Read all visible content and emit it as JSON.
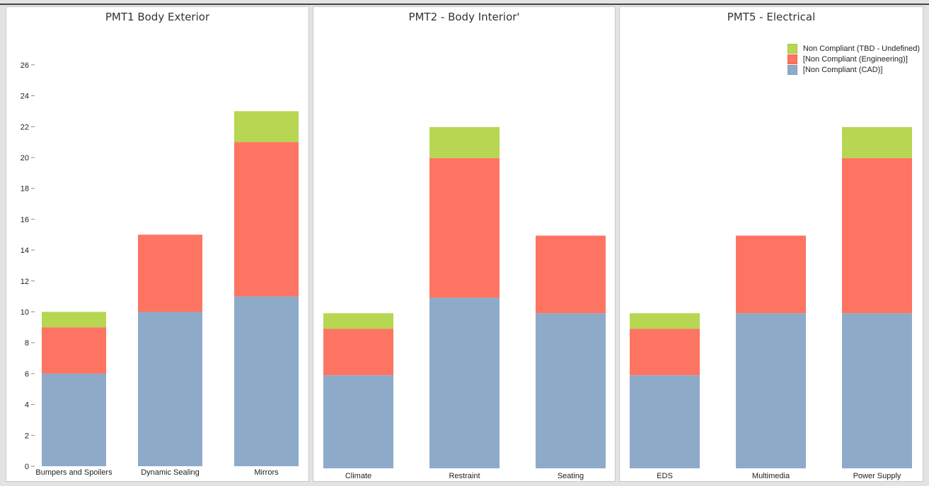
{
  "colors": {
    "cad": "#8eaac9",
    "engineering": "#fd7462",
    "tbd": "#b7d651"
  },
  "chart_data": [
    {
      "type": "bar",
      "stacked": true,
      "title": "PMT1 Body Exterior",
      "categories": [
        "Bumpers and Spoilers",
        "Dynamic Sealing",
        "Mirrors"
      ],
      "series": [
        {
          "name": "[Non Compliant (CAD)]",
          "values": [
            6,
            10,
            11
          ]
        },
        {
          "name": "[Non Compliant (Engineering)]",
          "values": [
            3,
            5,
            10
          ]
        },
        {
          "name": "Non Compliant (TBD - Undefined)",
          "values": [
            1,
            0,
            2
          ]
        }
      ],
      "ylim": [
        0,
        27
      ],
      "yticks": [
        0,
        2,
        4,
        6,
        8,
        10,
        12,
        14,
        16,
        18,
        20,
        22,
        24,
        26
      ],
      "show_y_axis": true,
      "grid": false
    },
    {
      "type": "bar",
      "stacked": true,
      "title": "PMT2 - Body Interior'",
      "categories": [
        "Climate",
        "Restraint",
        "Seating"
      ],
      "series": [
        {
          "name": "[Non Compliant (CAD)]",
          "values": [
            6,
            11,
            10
          ]
        },
        {
          "name": "[Non Compliant (Engineering)]",
          "values": [
            3,
            9,
            5
          ]
        },
        {
          "name": "Non Compliant (TBD - Undefined)",
          "values": [
            1,
            2,
            0
          ]
        }
      ],
      "ylim": [
        0,
        27
      ],
      "show_y_axis": false,
      "grid": false
    },
    {
      "type": "bar",
      "stacked": true,
      "title": "PMT5 - Electrical",
      "categories": [
        "EDS",
        "Multimedia",
        "Power Supply"
      ],
      "series": [
        {
          "name": "[Non Compliant (CAD)]",
          "values": [
            6,
            10,
            10
          ]
        },
        {
          "name": "[Non Compliant (Engineering)]",
          "values": [
            3,
            5,
            10
          ]
        },
        {
          "name": "Non Compliant (TBD - Undefined)",
          "values": [
            1,
            0,
            2
          ]
        }
      ],
      "ylim": [
        0,
        27
      ],
      "show_y_axis": false,
      "grid": false,
      "legend": "top-right"
    }
  ],
  "legend": {
    "items": [
      {
        "label": "Non Compliant (TBD - Undefined)",
        "color": "#b7d651"
      },
      {
        "label": "[Non Compliant (Engineering)]",
        "color": "#fd7462"
      },
      {
        "label": "[Non Compliant (CAD)]",
        "color": "#8eaac9"
      }
    ]
  }
}
